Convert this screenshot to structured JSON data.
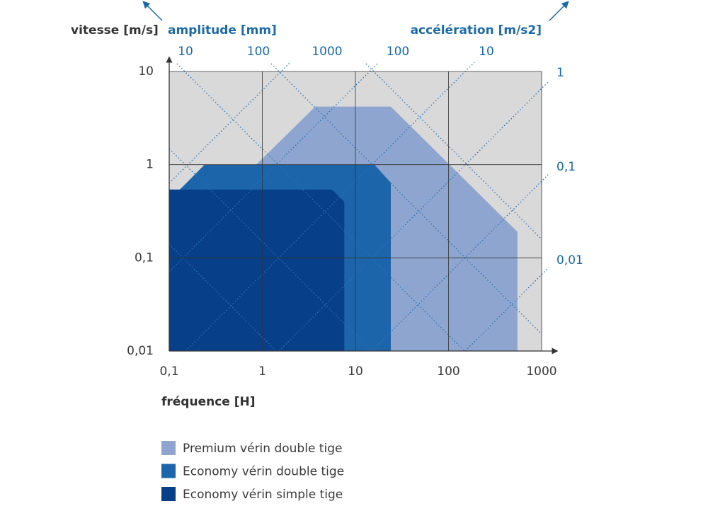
{
  "chart_data": {
    "type": "area",
    "y_label": "vitesse [m/s]",
    "x_label": "fréquence [H]",
    "log_scale": true,
    "grid": true,
    "xlim": [
      0.1,
      1000
    ],
    "ylim": [
      0.01,
      10
    ],
    "xticks": [
      {
        "value": 0.1,
        "label": "0,1"
      },
      1,
      10,
      100,
      1000
    ],
    "yticks": [
      {
        "value": 0.01,
        "label": "0,01"
      },
      {
        "value": 0.1,
        "label": "0,1"
      },
      1,
      10
    ],
    "amplitude": {
      "title": "amplitude [mm]",
      "values": [
        10,
        100,
        1000
      ]
    },
    "acceleration": {
      "title": "accélération [m/s2]",
      "values": [
        100,
        10,
        1,
        {
          "value": 0.1,
          "label": "0,1"
        },
        {
          "value": 0.01,
          "label": "0,01"
        }
      ]
    },
    "series": [
      {
        "name": "Premium vérin double tige",
        "color": "#8ea6cf",
        "x": [
          0.1,
          0.1,
          3.7,
          24,
          550,
          550
        ],
        "values": [
          0.01,
          0.12,
          4.2,
          4.2,
          0.19,
          0.01
        ]
      },
      {
        "name": "Economy vérin double tige",
        "color": "#1c65aa",
        "x": [
          0.1,
          0.1,
          0.13,
          0.24,
          16,
          24,
          24
        ],
        "values": [
          0.01,
          0.54,
          0.54,
          1,
          1,
          0.64,
          0.01
        ]
      },
      {
        "name": "Economy vérin simple tige",
        "color": "#073f88",
        "x": [
          0.1,
          0.1,
          5.6,
          7.6,
          7.6
        ],
        "values": [
          0.01,
          0.54,
          0.54,
          0.4,
          0.01
        ]
      }
    ]
  }
}
